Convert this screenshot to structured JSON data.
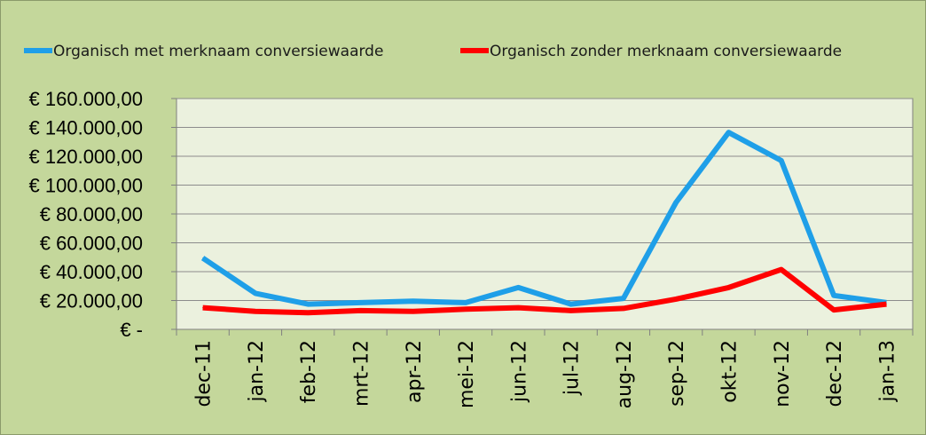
{
  "chart_data": {
    "type": "line",
    "categories": [
      "dec-11",
      "jan-12",
      "feb-12",
      "mrt-12",
      "apr-12",
      "mei-12",
      "jun-12",
      "jul-12",
      "aug-12",
      "sep-12",
      "okt-12",
      "nov-12",
      "dec-12",
      "jan-13"
    ],
    "series": [
      {
        "name": "Organisch met merknaam conversiewaarde",
        "color": "#1f9fe8",
        "values": [
          49500,
          25000,
          17500,
          18500,
          19500,
          18500,
          29000,
          17500,
          21500,
          88000,
          136500,
          117000,
          23500,
          18500
        ]
      },
      {
        "name": "Organisch zonder merknaam conversiewaarde",
        "color": "#ff0000",
        "values": [
          15000,
          12500,
          11500,
          13000,
          12500,
          14000,
          15000,
          13000,
          14500,
          21000,
          29000,
          41500,
          13500,
          17500
        ]
      }
    ],
    "yticks": [
      0,
      20000,
      40000,
      60000,
      80000,
      100000,
      120000,
      140000,
      160000
    ],
    "ytick_labels": [
      "€ -",
      "€ 20.000,00",
      "€ 40.000,00",
      "€ 60.000,00",
      "€ 80.000,00",
      "€ 100.000,00",
      "€ 120.000,00",
      "€ 140.000,00",
      "€ 160.000,00"
    ],
    "ylim": [
      0,
      160000
    ],
    "grid": true,
    "legend_position": "top",
    "plot_background": "#ebf1de",
    "chart_background": "#c4d79b"
  }
}
